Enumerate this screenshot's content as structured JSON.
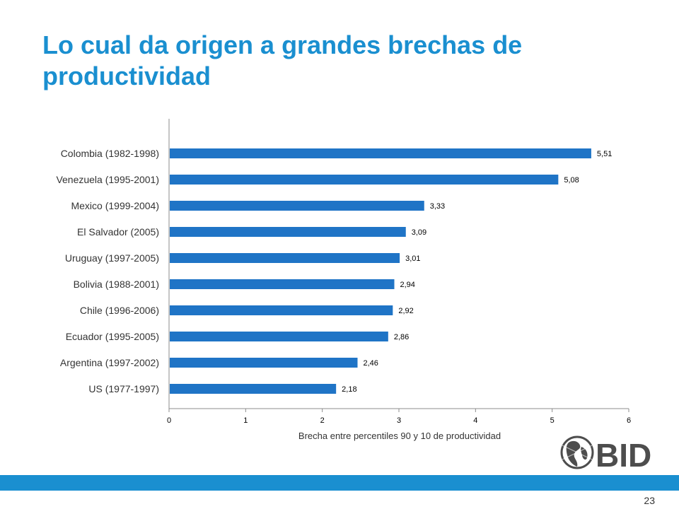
{
  "slide": {
    "title": "Lo cual da origen a grandes brechas de productividad",
    "page_number": "23",
    "logo_text": "BID"
  },
  "colors": {
    "title": "#1a8fd0",
    "bar": "#1f74c6",
    "footer_bar": "#1a8fd0",
    "logo": "#4d4d4d"
  },
  "chart_data": {
    "type": "bar",
    "orientation": "horizontal",
    "categories": [
      "Colombia (1982-1998)",
      "Venezuela (1995-2001)",
      "Mexico (1999-2004)",
      "El Salvador (2005)",
      "Uruguay (1997-2005)",
      "Bolivia (1988-2001)",
      "Chile (1996-2006)",
      "Ecuador (1995-2005)",
      "Argentina (1997-2002)",
      "US (1977-1997)"
    ],
    "values": [
      5.51,
      5.08,
      3.33,
      3.09,
      3.01,
      2.94,
      2.92,
      2.86,
      2.46,
      2.18
    ],
    "data_labels": [
      "5,51",
      "5,08",
      "3,33",
      "3,09",
      "3,01",
      "2,94",
      "2,92",
      "2,86",
      "2,46",
      "2,18"
    ],
    "xlabel": "Brecha entre percentiles 90 y 10 de productividad",
    "xlim": [
      0,
      6
    ],
    "xticks": [
      "0",
      "1",
      "2",
      "3",
      "4",
      "5",
      "6"
    ],
    "grid": false,
    "legend": "none"
  }
}
